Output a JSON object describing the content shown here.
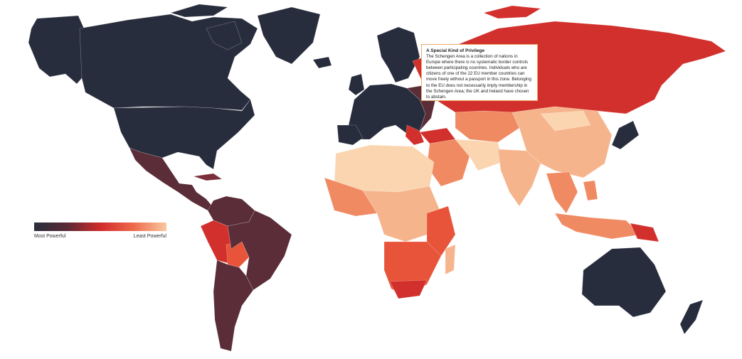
{
  "legend": {
    "left_label": "Most Powerful",
    "right_label": "Least Powerful",
    "gradient": [
      "#2a2e3c",
      "#5a2a36",
      "#d12a2a",
      "#ee6a4a",
      "#f9c8a0"
    ]
  },
  "infobox": {
    "title": "A Special Kind of Privilege",
    "body": "The Schengen Area is a collection of nations in Europe where there is no systematic border controls between participating countries. Individuals who are citizens of one of the 22 EU member countries can move freely without a passport in this zone. Belonging to the EU does not necessarily imply membership in the Schengen Area; the UK and Ireland have chosen to abstain.",
    "border_color": "#f0a868"
  },
  "colors": {
    "most_powerful": "#282d3d",
    "strong": "#5a2d38",
    "medium_dark": "#7a2f3a",
    "red": "#d2302c",
    "orange_red": "#e8543a",
    "orange": "#f08a62",
    "light": "#f6b48c",
    "lightest": "#fbd5b0",
    "schengen_outline": "#f0a868"
  }
}
